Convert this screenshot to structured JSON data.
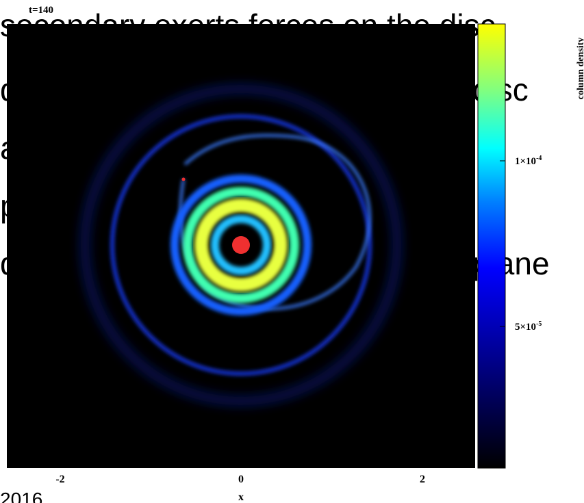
{
  "slide": {
    "lines": [
      {
        "left": "secondary exerts forces on the disc"
      },
      {
        "left": "d",
        "right": "disc"
      },
      {
        "left": "a"
      },
      {
        "left": "p"
      },
      {
        "left": "d",
        "right": "plane"
      }
    ],
    "footer": "2016"
  },
  "figure": {
    "time_label": "t=140",
    "x_label": "x",
    "x_ticks": [
      "-2",
      "0",
      "2"
    ],
    "colorbar_label": "column density",
    "colorbar_ticks": [
      {
        "base": "1×10",
        "exp": "-4"
      },
      {
        "base": "5×10",
        "exp": "-5"
      }
    ]
  }
}
